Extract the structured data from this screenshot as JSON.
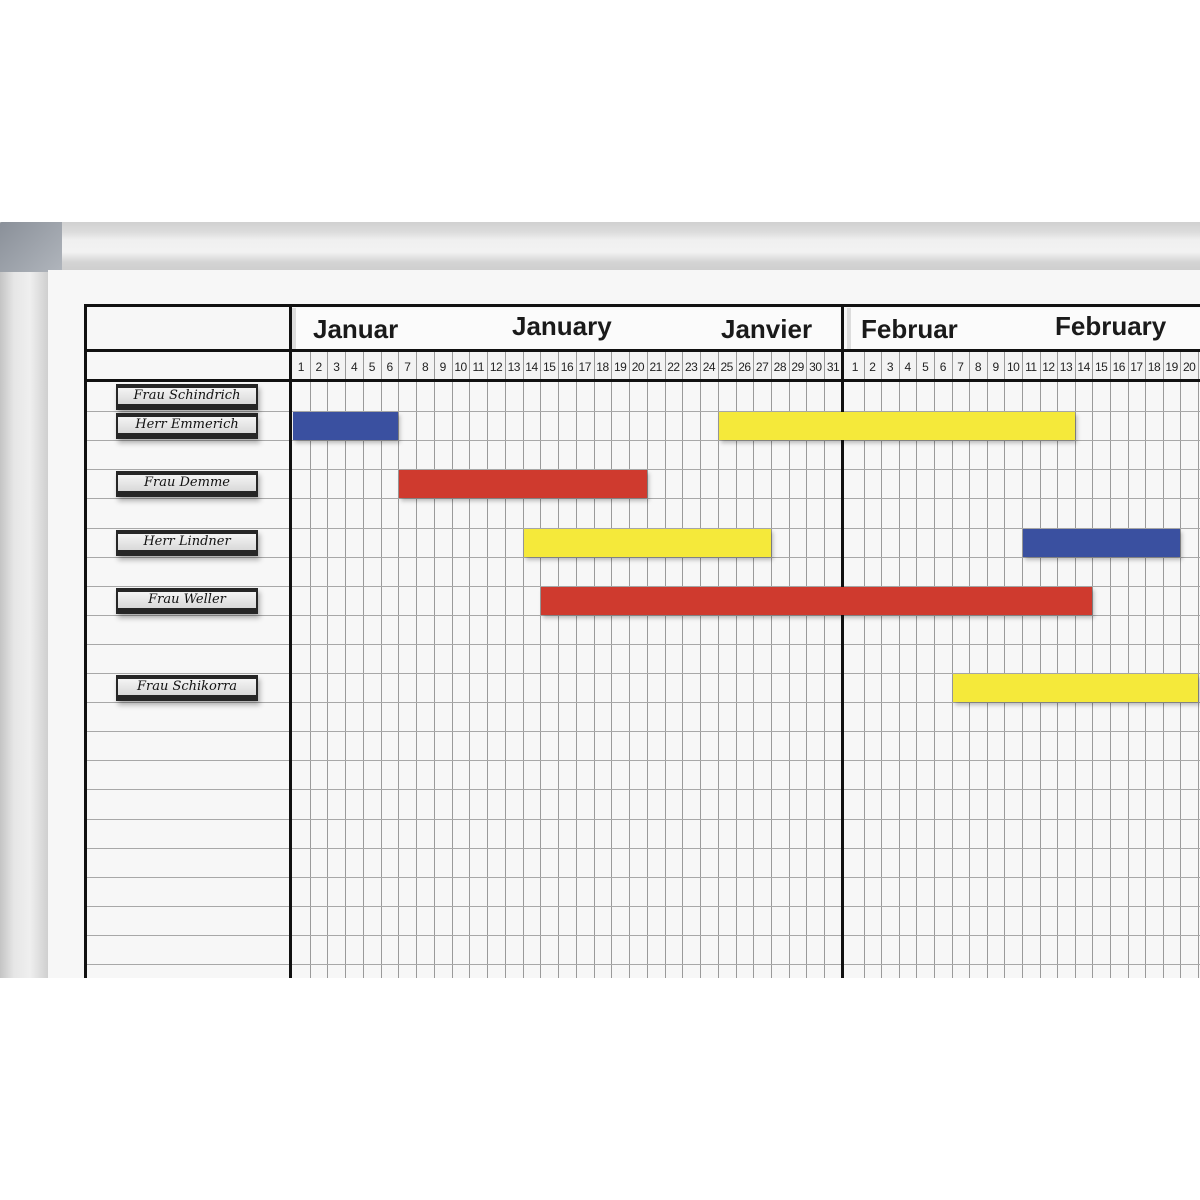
{
  "months": [
    {
      "labels": [
        "Januar",
        "January",
        "Janvier"
      ],
      "days": 31
    },
    {
      "labels": [
        "Februar",
        "February"
      ],
      "days_visible": 20
    }
  ],
  "people": [
    {
      "name": "Frau Schindrich",
      "row": 0
    },
    {
      "name": "Herr Emmerich",
      "row": 1
    },
    {
      "name": "Frau Demme",
      "row": 3
    },
    {
      "name": "Herr Lindner",
      "row": 5
    },
    {
      "name": "Frau Weller",
      "row": 7
    },
    {
      "name": "Frau Schikorra",
      "row": 10
    }
  ],
  "colors": {
    "blue": "#3a50a0",
    "red": "#cf3a2e",
    "yellow": "#f5e93a"
  },
  "bars": [
    {
      "row": 1,
      "color": "blue",
      "start": {
        "month": 1,
        "day": 1
      },
      "end": {
        "month": 1,
        "day": 6
      }
    },
    {
      "row": 1,
      "color": "yellow",
      "start": {
        "month": 1,
        "day": 25
      },
      "end": {
        "month": 2,
        "day": 13
      }
    },
    {
      "row": 3,
      "color": "red",
      "start": {
        "month": 1,
        "day": 7
      },
      "end": {
        "month": 1,
        "day": 20
      }
    },
    {
      "row": 5,
      "color": "yellow",
      "start": {
        "month": 1,
        "day": 14
      },
      "end": {
        "month": 1,
        "day": 27
      }
    },
    {
      "row": 5,
      "color": "blue",
      "start": {
        "month": 2,
        "day": 11
      },
      "end": {
        "month": 2,
        "day": 19
      }
    },
    {
      "row": 7,
      "color": "red",
      "start": {
        "month": 1,
        "day": 15
      },
      "end": {
        "month": 2,
        "day": 14
      }
    },
    {
      "row": 10,
      "color": "yellow",
      "start": {
        "month": 2,
        "day": 7
      },
      "end": {
        "month": 2,
        "day": 20
      }
    }
  ]
}
